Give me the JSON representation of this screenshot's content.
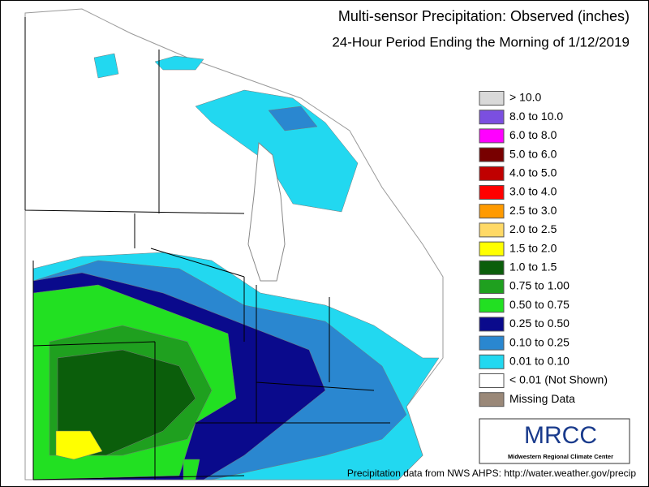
{
  "title": "Multi-sensor Precipitation: Observed (inches)",
  "subtitle": "24-Hour Period Ending the Morning of 1/12/2019",
  "legend": [
    {
      "label": "> 10.0",
      "color": "#d9d9d9"
    },
    {
      "label": "8.0 to 10.0",
      "color": "#7b4fe0"
    },
    {
      "label": "6.0 to 8.0",
      "color": "#ff00ff"
    },
    {
      "label": "5.0 to 6.0",
      "color": "#780000"
    },
    {
      "label": "4.0 to 5.0",
      "color": "#c00000"
    },
    {
      "label": "3.0 to 4.0",
      "color": "#ff0000"
    },
    {
      "label": "2.5 to 3.0",
      "color": "#ff9a00"
    },
    {
      "label": "2.0 to 2.5",
      "color": "#ffd966"
    },
    {
      "label": "1.5 to 2.0",
      "color": "#ffff00"
    },
    {
      "label": "1.0 to 1.5",
      "color": "#0b5e0b"
    },
    {
      "label": "0.75 to 1.00",
      "color": "#1fa01f"
    },
    {
      "label": "0.50 to 0.75",
      "color": "#22e022"
    },
    {
      "label": "0.25 to 0.50",
      "color": "#0a0a8c"
    },
    {
      "label": "0.10 to 0.25",
      "color": "#2a87d0"
    },
    {
      "label": "0.01 to 0.10",
      "color": "#22d8f0"
    },
    {
      "label": "< 0.01 (Not Shown)",
      "color": "#ffffff"
    },
    {
      "label": "Missing Data",
      "color": "#9a8878"
    }
  ],
  "logo": {
    "name": "MRCC",
    "full_name": "Midwestern Regional Climate Center"
  },
  "footer": "Precipitation data from NWS AHPS: http://water.weather.gov/precip"
}
